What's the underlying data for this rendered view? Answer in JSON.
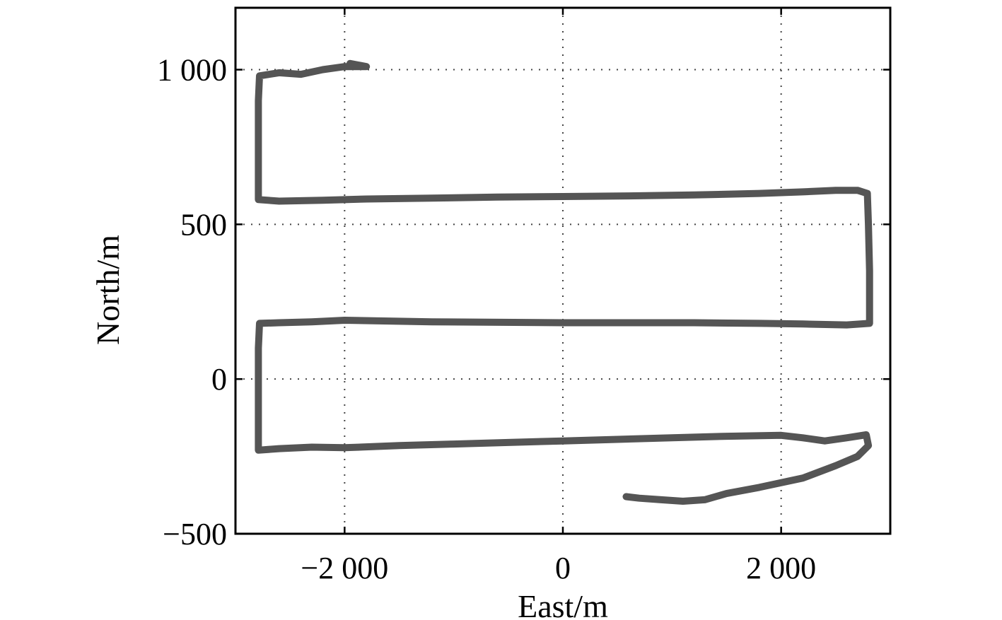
{
  "chart_data": {
    "type": "line",
    "title": "",
    "xlabel": "East/m",
    "ylabel": "North/m",
    "xlim": [
      -3000,
      3000
    ],
    "ylim": [
      -500,
      1200
    ],
    "x_ticks": [
      -2000,
      0,
      2000
    ],
    "x_tick_labels": [
      "−2 000",
      "0",
      "2 000"
    ],
    "y_ticks": [
      -500,
      0,
      500,
      1000
    ],
    "y_tick_labels": [
      "−500",
      "0",
      "500",
      "1 000"
    ],
    "grid": true,
    "legend": "none",
    "colors": {
      "line": "#555555",
      "grid": "#444444",
      "axes": "#000000"
    },
    "series": [
      {
        "points": [
          [
            -1950,
            1020
          ],
          [
            -1800,
            1010
          ],
          [
            -2000,
            1010
          ],
          [
            -2200,
            1000
          ],
          [
            -2400,
            985
          ],
          [
            -2600,
            990
          ],
          [
            -2780,
            980
          ],
          [
            -2790,
            900
          ],
          [
            -2790,
            700
          ],
          [
            -2790,
            580
          ],
          [
            -2600,
            575
          ],
          [
            -2200,
            578
          ],
          [
            -1800,
            582
          ],
          [
            -1200,
            585
          ],
          [
            -600,
            588
          ],
          [
            0,
            590
          ],
          [
            600,
            592
          ],
          [
            1200,
            595
          ],
          [
            1800,
            600
          ],
          [
            2200,
            605
          ],
          [
            2500,
            610
          ],
          [
            2700,
            610
          ],
          [
            2790,
            600
          ],
          [
            2800,
            500
          ],
          [
            2810,
            350
          ],
          [
            2810,
            180
          ],
          [
            2600,
            175
          ],
          [
            2200,
            178
          ],
          [
            1800,
            180
          ],
          [
            1200,
            182
          ],
          [
            0,
            182
          ],
          [
            -1200,
            185
          ],
          [
            -2000,
            190
          ],
          [
            -2300,
            185
          ],
          [
            -2600,
            182
          ],
          [
            -2780,
            180
          ],
          [
            -2790,
            100
          ],
          [
            -2790,
            -50
          ],
          [
            -2790,
            -230
          ],
          [
            -2600,
            -225
          ],
          [
            -2300,
            -220
          ],
          [
            -2000,
            -222
          ],
          [
            -1500,
            -215
          ],
          [
            -1000,
            -210
          ],
          [
            -500,
            -205
          ],
          [
            0,
            -200
          ],
          [
            500,
            -195
          ],
          [
            1000,
            -190
          ],
          [
            1500,
            -185
          ],
          [
            2000,
            -182
          ],
          [
            2200,
            -190
          ],
          [
            2400,
            -200
          ],
          [
            2600,
            -190
          ],
          [
            2780,
            -180
          ],
          [
            2800,
            -215
          ],
          [
            2700,
            -250
          ],
          [
            2500,
            -280
          ],
          [
            2200,
            -320
          ],
          [
            1800,
            -350
          ],
          [
            1500,
            -370
          ],
          [
            1300,
            -390
          ],
          [
            1100,
            -395
          ],
          [
            900,
            -390
          ],
          [
            700,
            -385
          ],
          [
            580,
            -380
          ]
        ]
      }
    ]
  }
}
